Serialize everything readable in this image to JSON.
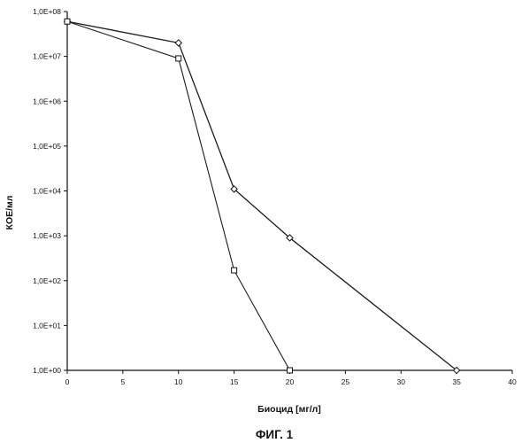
{
  "figure_caption": "ФИГ. 1",
  "chart_data": {
    "type": "line",
    "title": "",
    "xlabel": "Биоцид [мг/л]",
    "ylabel": "КОЕ/мл",
    "xlim": [
      0,
      40
    ],
    "ylim": [
      1,
      100000000
    ],
    "y_scale": "log",
    "grid": false,
    "x_ticks": [
      0,
      5,
      10,
      15,
      20,
      25,
      30,
      35,
      40
    ],
    "x_tick_labels": [
      "0",
      "5",
      "10",
      "15",
      "20",
      "25",
      "30",
      "35",
      "40"
    ],
    "y_ticks": [
      100000000,
      10000000,
      1000000,
      100000,
      10000,
      1000,
      100,
      10,
      1
    ],
    "y_tick_labels": [
      "1,0E+08",
      "1,0E+07",
      "1,0E+06",
      "1,0E+05",
      "1,0E+04",
      "1,0E+03",
      "1,0E+02",
      "1,0E+01",
      "1,0E+00"
    ],
    "series": [
      {
        "marker": "diamond",
        "x": [
          0,
          10,
          15,
          20,
          35
        ],
        "y": [
          60000000,
          20000000,
          11000,
          900,
          1
        ]
      },
      {
        "marker": "square",
        "x": [
          0,
          10,
          15,
          20
        ],
        "y": [
          60000000,
          9000000,
          170,
          1
        ]
      }
    ]
  }
}
